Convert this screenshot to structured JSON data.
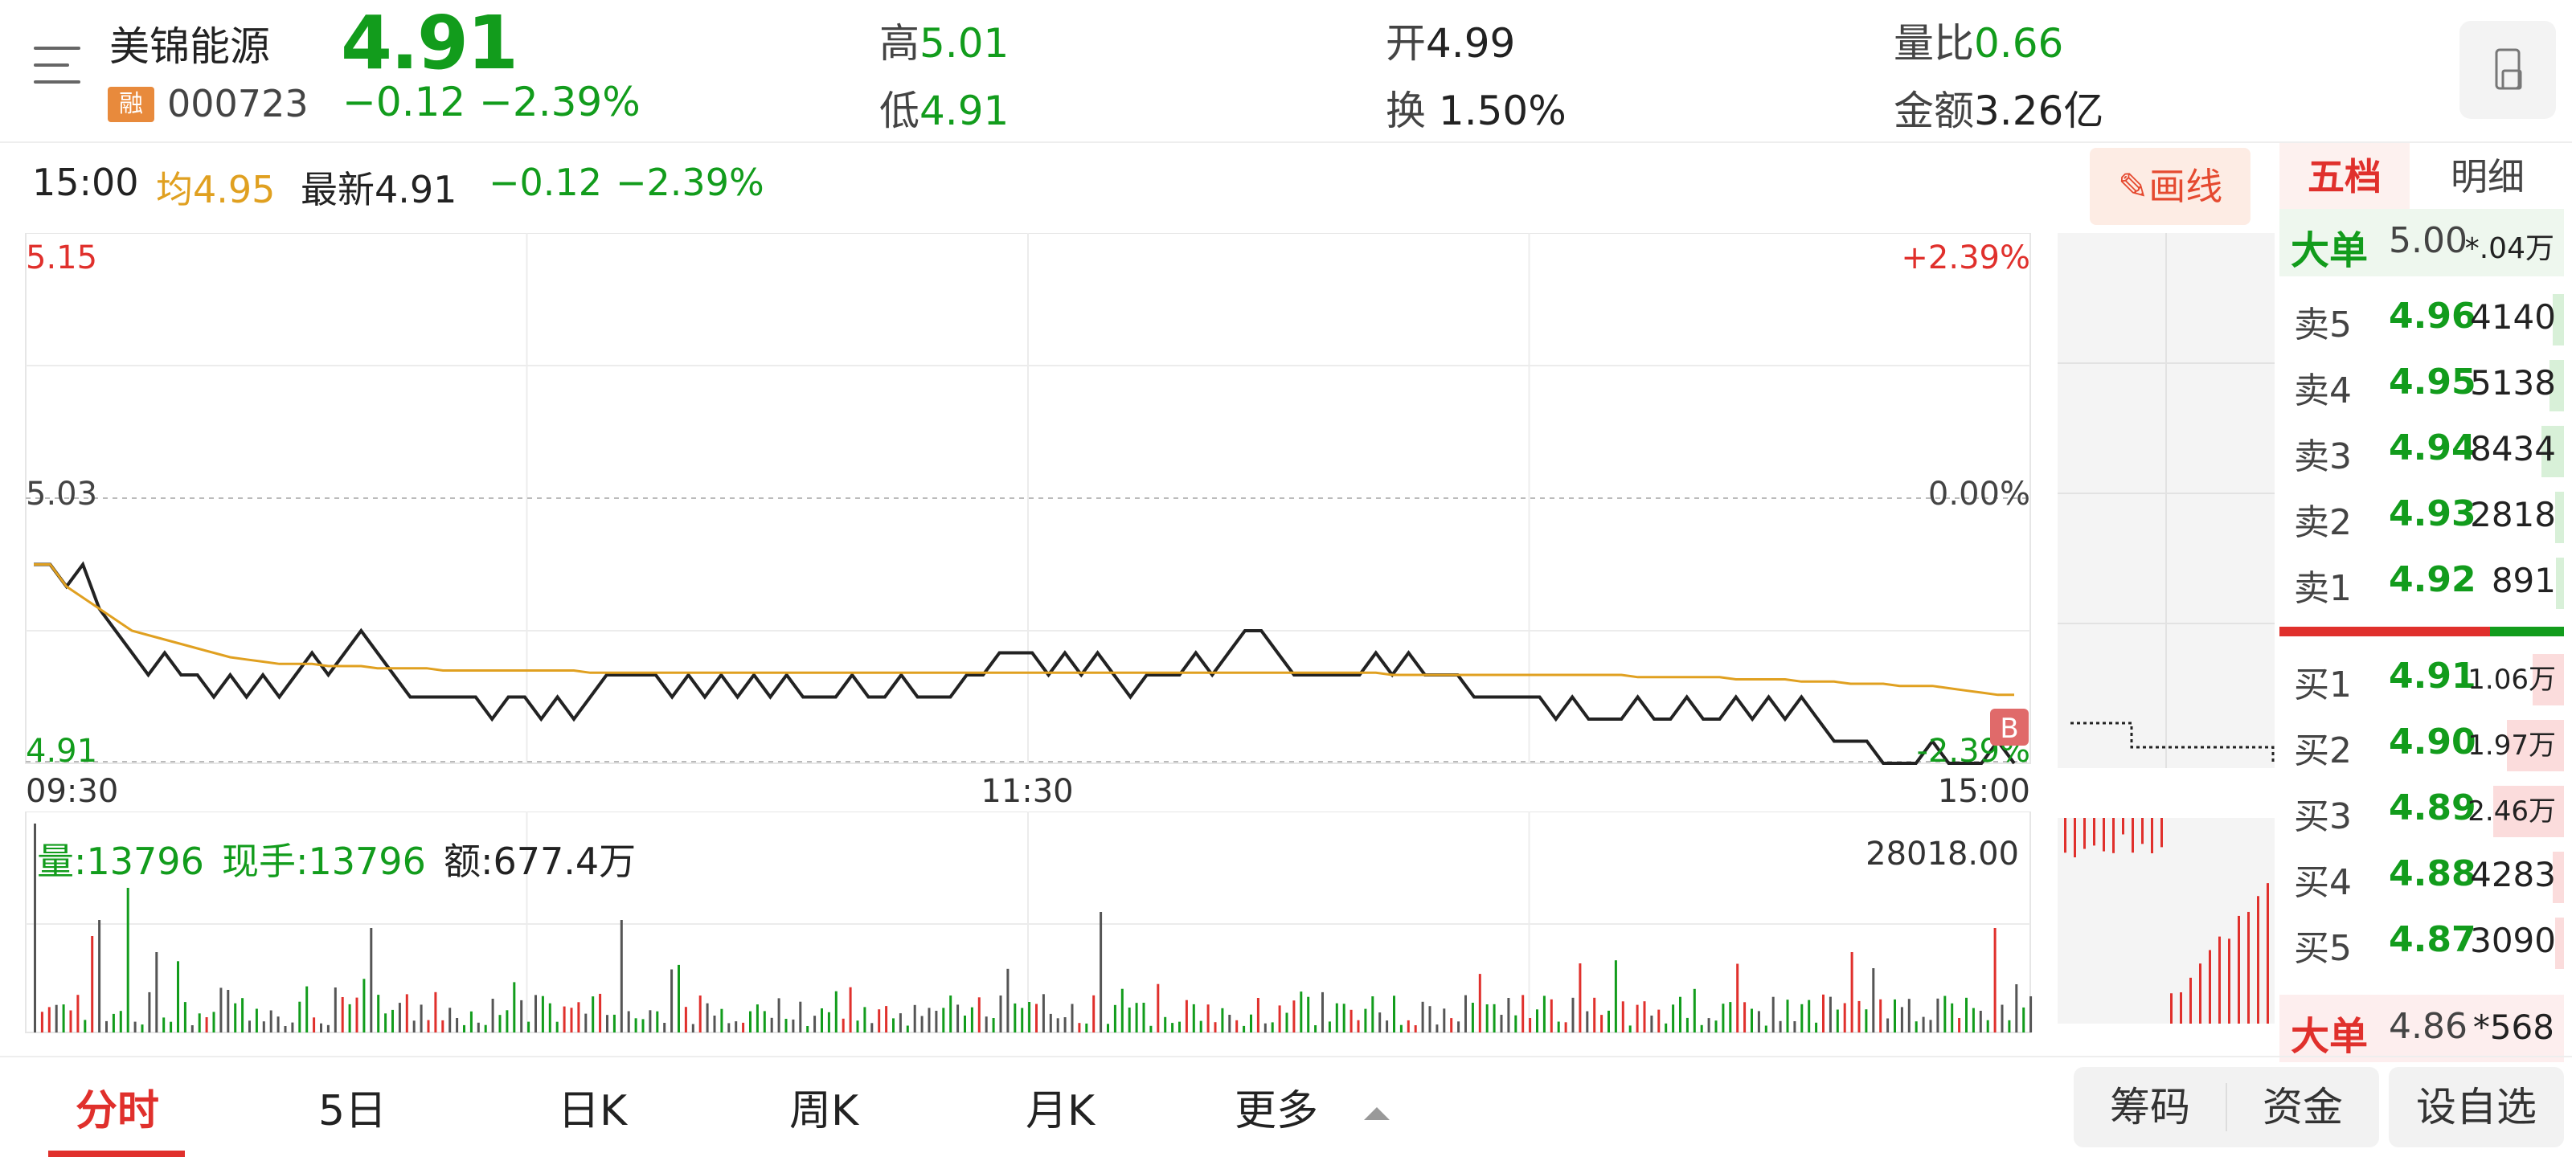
{
  "header": {
    "stock_name": "美锦能源",
    "badge": "融",
    "stock_code": "000723",
    "price": "4.91",
    "change": "−0.12",
    "change_pct": "−2.39%",
    "high_label": "高",
    "high_value": "5.01",
    "low_label": "低",
    "low_value": "4.91",
    "open_label": "开",
    "open_value": "4.99",
    "turnover_label": "换",
    "turnover_value": "1.50%",
    "vol_ratio_label": "量比",
    "vol_ratio_value": "0.66",
    "amount_label": "金额",
    "amount_value": "3.26亿"
  },
  "info_bar": {
    "time": "15:00",
    "avg_label": "均",
    "avg_value": "4.95",
    "latest_label": "最新",
    "latest_value": "4.91",
    "change": "−0.12",
    "change_pct": "−2.39%",
    "draw_button": "画线"
  },
  "right_tabs": {
    "five_levels": "五档",
    "details": "明细"
  },
  "chart_data": {
    "type": "line",
    "series": [
      {
        "values": [
          5.0,
          5.0,
          4.99,
          5.0,
          4.98,
          4.97,
          4.96,
          4.95,
          4.96,
          4.95,
          4.95,
          4.94,
          4.95,
          4.94,
          4.95,
          4.94,
          4.95,
          4.96,
          4.95,
          4.96,
          4.97,
          4.96,
          4.95,
          4.94,
          4.94,
          4.94,
          4.94,
          4.94,
          4.93,
          4.94,
          4.94,
          4.93,
          4.94,
          4.93,
          4.94,
          4.95,
          4.95,
          4.95,
          4.95,
          4.94,
          4.95,
          4.94,
          4.95,
          4.94,
          4.95,
          4.94,
          4.95,
          4.94,
          4.94,
          4.94,
          4.95,
          4.94,
          4.94,
          4.95,
          4.94,
          4.94,
          4.94,
          4.95,
          4.95,
          4.96,
          4.96,
          4.96,
          4.95,
          4.96,
          4.95,
          4.96,
          4.95,
          4.94,
          4.95,
          4.95,
          4.95,
          4.96,
          4.95,
          4.96,
          4.97,
          4.97,
          4.96,
          4.95,
          4.95,
          4.95,
          4.95,
          4.95,
          4.96,
          4.95,
          4.96,
          4.95,
          4.95,
          4.95,
          4.94,
          4.94,
          4.94,
          4.94,
          4.94,
          4.93,
          4.94,
          4.93,
          4.93,
          4.93,
          4.94,
          4.93,
          4.93,
          4.94,
          4.93,
          4.93,
          4.94,
          4.93,
          4.94,
          4.93,
          4.94,
          4.93,
          4.92,
          4.92,
          4.92,
          4.91,
          4.91,
          4.91,
          4.92,
          4.91,
          4.91,
          4.91,
          4.92,
          4.91
        ]
      },
      {
        "values": [
          5.0,
          5.0,
          4.99,
          4.985,
          4.98,
          4.975,
          4.97,
          4.968,
          4.966,
          4.964,
          4.962,
          4.96,
          4.958,
          4.957,
          4.956,
          4.955,
          4.955,
          4.955,
          4.954,
          4.954,
          4.954,
          4.953,
          4.953,
          4.953,
          4.953,
          4.952,
          4.952,
          4.952,
          4.952,
          4.952,
          4.952,
          4.952,
          4.952,
          4.952,
          4.951,
          4.951,
          4.951,
          4.951,
          4.951,
          4.951,
          4.951,
          4.951,
          4.951,
          4.951,
          4.951,
          4.951,
          4.951,
          4.951,
          4.951,
          4.951,
          4.951,
          4.951,
          4.951,
          4.951,
          4.951,
          4.951,
          4.951,
          4.951,
          4.951,
          4.951,
          4.951,
          4.951,
          4.951,
          4.951,
          4.951,
          4.951,
          4.951,
          4.951,
          4.951,
          4.951,
          4.951,
          4.951,
          4.951,
          4.951,
          4.951,
          4.951,
          4.951,
          4.951,
          4.951,
          4.951,
          4.951,
          4.951,
          4.951,
          4.95,
          4.95,
          4.95,
          4.95,
          4.95,
          4.95,
          4.95,
          4.95,
          4.95,
          4.95,
          4.95,
          4.95,
          4.95,
          4.95,
          4.95,
          4.949,
          4.949,
          4.949,
          4.949,
          4.949,
          4.949,
          4.948,
          4.948,
          4.948,
          4.948,
          4.947,
          4.947,
          4.947,
          4.946,
          4.946,
          4.946,
          4.945,
          4.945,
          4.945,
          4.944,
          4.943,
          4.942,
          4.941,
          4.941
        ]
      }
    ],
    "y_labels": {
      "top": "5.15",
      "mid": "5.03",
      "bottom": "4.91"
    },
    "pct_labels": {
      "top": "+2.39%",
      "mid": "0.00%",
      "bottom": "-2.39%"
    },
    "x_labels": [
      "09:30",
      "11:30",
      "15:00"
    ],
    "ylim": [
      4.91,
      5.15
    ],
    "grid": true,
    "marker": "B"
  },
  "volume": {
    "vol_label": "量:13796",
    "hand_label": "现手:13796",
    "amount_label": "额:677.4万",
    "max_label": "28018.00"
  },
  "order_book": {
    "top_big": {
      "label": "大单",
      "price": "5.00",
      "vol": "*.04万"
    },
    "sells": [
      {
        "label": "卖5",
        "price": "4.96",
        "vol": "4140",
        "fill": 0.04
      },
      {
        "label": "卖4",
        "price": "4.95",
        "vol": "5138",
        "fill": 0.05
      },
      {
        "label": "卖3",
        "price": "4.94",
        "vol": "8434",
        "fill": 0.08
      },
      {
        "label": "卖2",
        "price": "4.93",
        "vol": "2818",
        "fill": 0.03
      },
      {
        "label": "卖1",
        "price": "4.92",
        "vol": "891",
        "fill": 0.01
      }
    ],
    "buys": [
      {
        "label": "买1",
        "price": "4.91",
        "vol": "1.06万",
        "fill": 0.11
      },
      {
        "label": "买2",
        "price": "4.90",
        "vol": "1.97万",
        "fill": 0.2
      },
      {
        "label": "买3",
        "price": "4.89",
        "vol": "2.46万",
        "fill": 0.25
      },
      {
        "label": "买4",
        "price": "4.88",
        "vol": "4283",
        "fill": 0.04
      },
      {
        "label": "买5",
        "price": "4.87",
        "vol": "3090",
        "fill": 0.03
      }
    ],
    "bottom_big": {
      "label": "大单",
      "price": "4.86",
      "vol": "*568"
    }
  },
  "bottom_nav": {
    "tabs": [
      "分时",
      "5日",
      "日K",
      "周K",
      "月K",
      "更多"
    ],
    "chip": "筹码",
    "fund": "资金",
    "watchlist": "设自选"
  },
  "colors": {
    "up": "#e0302c",
    "down": "#129c1c",
    "price_line": "#222222",
    "avg_line": "#e0a020"
  }
}
